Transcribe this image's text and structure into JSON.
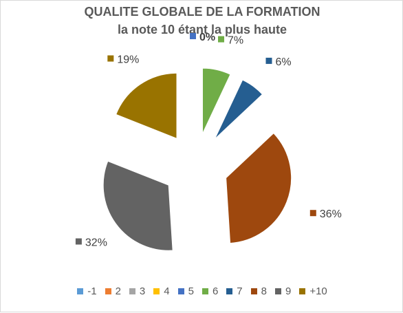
{
  "chart_data": {
    "type": "pie",
    "title": "QUALITE GLOBALE DE LA FORMATION",
    "subtitle": "la note 10 étant la plus haute",
    "categories": [
      "-1",
      "2",
      "3",
      "4",
      "5",
      "6",
      "7",
      "8",
      "9",
      "+10"
    ],
    "values": [
      0,
      0,
      0,
      0,
      0,
      7,
      6,
      36,
      32,
      19
    ],
    "data_labels": [
      "",
      "",
      "",
      "",
      "0%",
      "7%",
      "6%",
      "36%",
      "32%",
      "19%"
    ],
    "colors": [
      "#5b9bd5",
      "#ed7d31",
      "#a5a5a5",
      "#ffc000",
      "#4472c4",
      "#70ad47",
      "#255e91",
      "#9e480e",
      "#636363",
      "#997300"
    ],
    "legend_position": "bottom",
    "exploded": true
  }
}
